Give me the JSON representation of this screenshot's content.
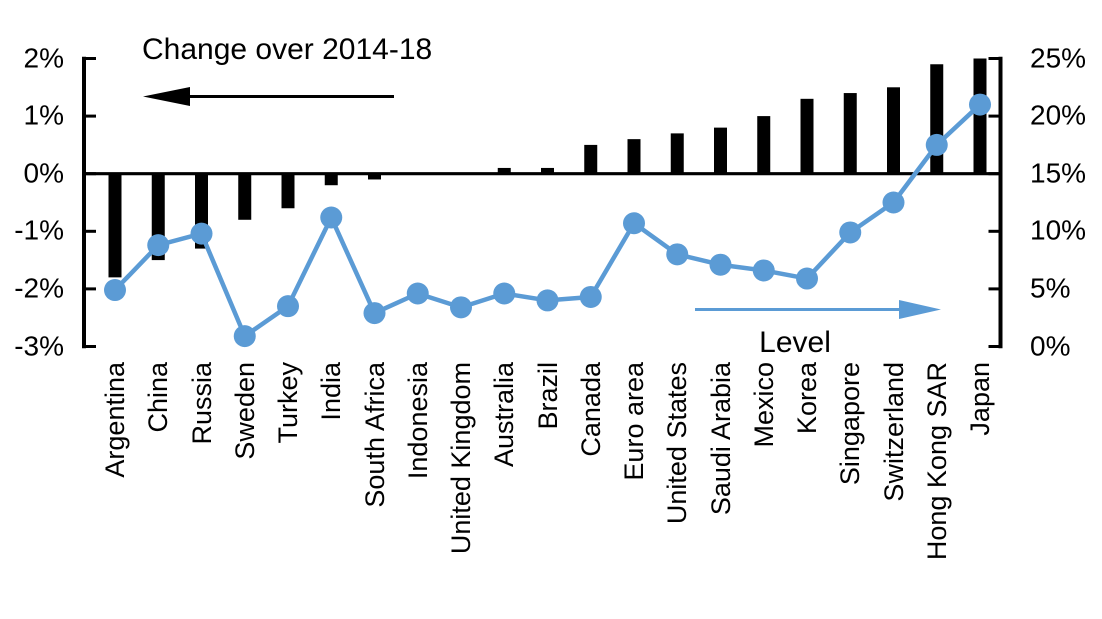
{
  "chart_data": {
    "type": "bar+line dual-axis combo",
    "titles": {
      "bars": "Change over 2014-18",
      "line": "Level"
    },
    "categories": [
      "Argentina",
      "China",
      "Russia",
      "Sweden",
      "Turkey",
      "India",
      "South Africa",
      "Indonesia",
      "United Kingdom",
      "Australia",
      "Brazil",
      "Canada",
      "Euro area",
      "United States",
      "Saudi Arabia",
      "Mexico",
      "Korea",
      "Singapore",
      "Switzerland",
      "Hong Kong SAR",
      "Japan"
    ],
    "series": [
      {
        "name": "Change over 2014-18",
        "type": "bar",
        "axis": "left",
        "color": "#000000",
        "values": [
          -1.8,
          -1.5,
          -1.3,
          -0.8,
          -0.6,
          -0.2,
          -0.1,
          0,
          0,
          0.1,
          0.1,
          0.5,
          0.6,
          0.7,
          0.8,
          1.0,
          1.3,
          1.4,
          1.5,
          1.9,
          2.0
        ]
      },
      {
        "name": "Level",
        "type": "line",
        "axis": "right",
        "color": "#5B9BD5",
        "values": [
          4.9,
          8.8,
          9.8,
          0.9,
          3.5,
          11.2,
          2.9,
          4.6,
          3.4,
          4.6,
          4.0,
          4.3,
          10.7,
          8.0,
          7.1,
          6.6,
          5.9,
          9.9,
          12.5,
          17.5,
          21.0
        ]
      }
    ],
    "left_axis": {
      "min": -3,
      "max": 2,
      "tick_labels": [
        "2%",
        "1%",
        "0%",
        "-1%",
        "-2%",
        "-3%"
      ],
      "tick_values": [
        2,
        1,
        0,
        -1,
        -2,
        -3
      ]
    },
    "right_axis": {
      "min": 0,
      "max": 25,
      "tick_labels": [
        "25%",
        "20%",
        "15%",
        "10%",
        "5%",
        "0%"
      ],
      "tick_values": [
        25,
        20,
        15,
        10,
        5,
        0
      ]
    },
    "grid": "off",
    "legend": "arrows pointing to respective axes",
    "colors": {
      "bar": "#000000",
      "line": "#5B9BD5",
      "axis": "#000000",
      "background": "#FFFFFF"
    }
  }
}
